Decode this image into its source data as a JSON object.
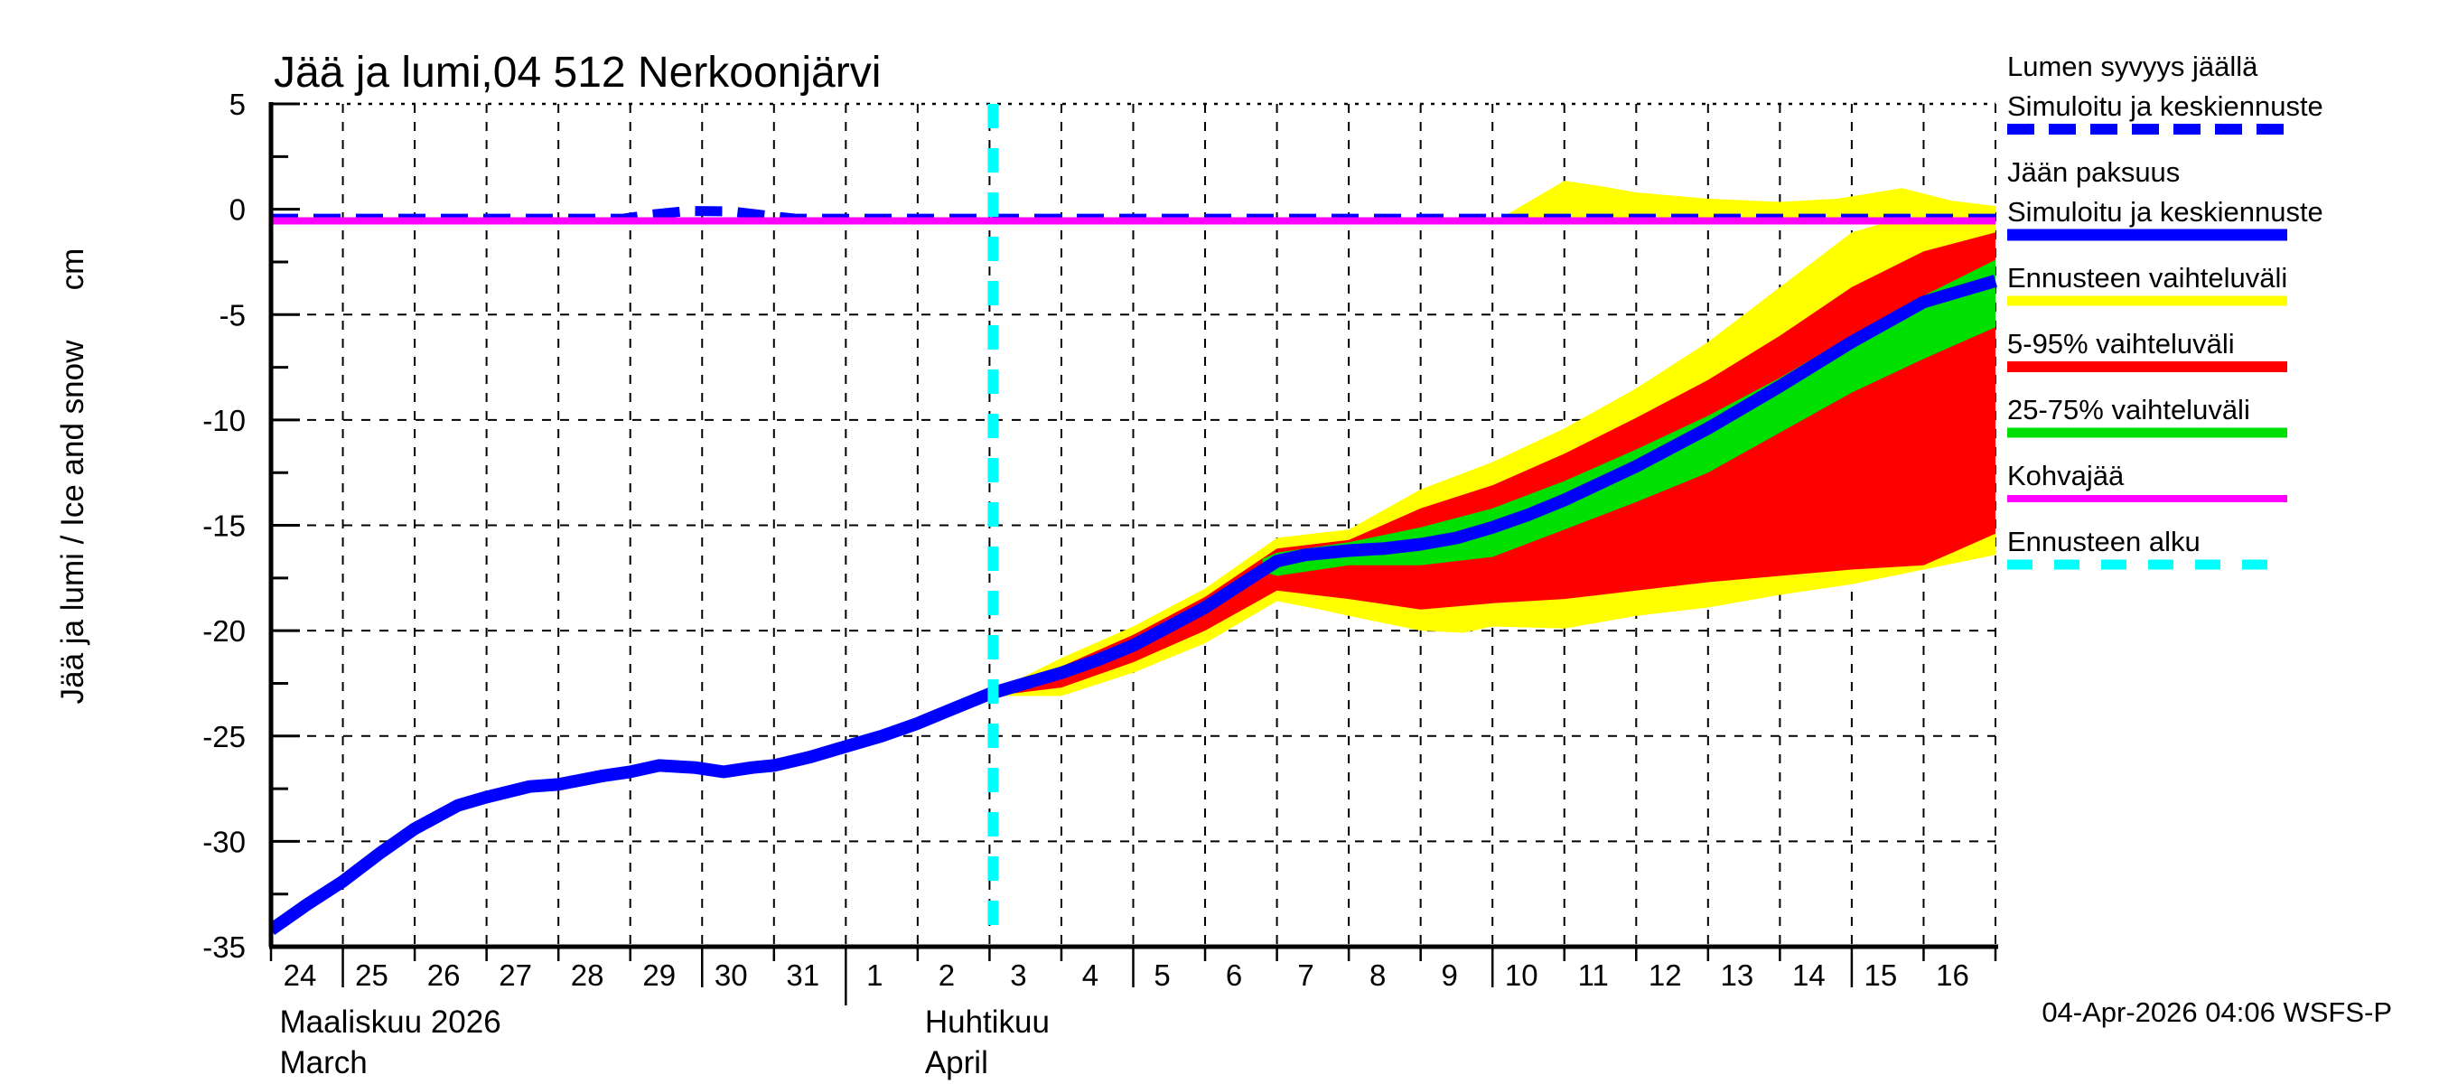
{
  "header": {
    "title": "Jää ja lumi,04 512 Nerkoonjärvi"
  },
  "footer": {
    "datestamp": "04-Apr-2026 04:06 WSFS-P"
  },
  "y_axis": {
    "label": "Jää ja lumi / Ice and snow",
    "unit": "cm",
    "tick_labels": [
      "5",
      "0",
      "-5",
      "-10",
      "-15",
      "-20",
      "-25",
      "-30",
      "-35"
    ],
    "tick_values": [
      5,
      0,
      -5,
      -10,
      -15,
      -20,
      -25,
      -30,
      -35
    ]
  },
  "x_axis": {
    "day_labels": [
      "24",
      "25",
      "26",
      "27",
      "28",
      "29",
      "30",
      "31",
      "1",
      "2",
      "3",
      "4",
      "5",
      "6",
      "7",
      "8",
      "9",
      "10",
      "11",
      "12",
      "13",
      "14",
      "15",
      "16"
    ],
    "long_tick_days": [
      1,
      6,
      8,
      12,
      17,
      22
    ],
    "month_tick_day": 8,
    "months": [
      {
        "fi": "Maaliskuu 2026",
        "en": "March",
        "day": 0.12
      },
      {
        "fi": "Huhtikuu",
        "en": "April",
        "day": 9.1
      }
    ]
  },
  "legend": {
    "items": [
      {
        "name": "snow-depth-on-ice",
        "lines": [
          "Lumen syvyys jäällä",
          "Simuloitu ja keskiennuste"
        ],
        "color": "#0000FF",
        "dash": "30 16",
        "width": 12
      },
      {
        "name": "ice-thickness",
        "lines": [
          "Jään paksuus",
          "Simuloitu ja keskiennuste"
        ],
        "color": "#0000FF",
        "dash": null,
        "width": 13
      },
      {
        "name": "forecast-range",
        "lines": [
          "Ennusteen vaihteluväli"
        ],
        "color": "#FFFF00",
        "dash": null,
        "width": 11
      },
      {
        "name": "range-5-95",
        "lines": [
          "5-95% vaihteluväli"
        ],
        "color": "#FF0000",
        "dash": null,
        "width": 12
      },
      {
        "name": "range-25-75",
        "lines": [
          "25-75% vaihteluväli"
        ],
        "color": "#00E000",
        "dash": null,
        "width": 11
      },
      {
        "name": "kohvajaa",
        "lines": [
          "Kohvajää"
        ],
        "color": "#FF00FF",
        "dash": null,
        "width": 8
      },
      {
        "name": "forecast-start",
        "lines": [
          "Ennusteen alku"
        ],
        "color": "#00FFFF",
        "dash": "28 24",
        "width": 11
      }
    ]
  },
  "chart_data": {
    "type": "area",
    "title": "Jää ja lumi,04 512 Nerkoonjärvi",
    "xlabel": "",
    "ylabel": "Jää ja lumi / Ice and snow (cm)",
    "ylim": [
      -35,
      5
    ],
    "x_span_days": 24,
    "x_start_label": "24 March",
    "x_end_label": "17 April",
    "grid": true,
    "legend_position": "right-outside",
    "forecast_start_day": 10.05,
    "colors": {
      "median": "#0000FF",
      "snow_median": "#0000FF",
      "band_total": "#FFFF00",
      "band_5_95": "#FF0000",
      "band_25_75": "#00E000",
      "kohvajaa": "#FF00FF",
      "forecast_line": "#00FFFF"
    },
    "series": {
      "ice_median": [
        [
          0,
          -34.2
        ],
        [
          0.5,
          -33.0
        ],
        [
          1,
          -31.9
        ],
        [
          1.5,
          -30.6
        ],
        [
          2,
          -29.4
        ],
        [
          2.6,
          -28.3
        ],
        [
          3,
          -27.9
        ],
        [
          3.6,
          -27.4
        ],
        [
          4,
          -27.3
        ],
        [
          4.6,
          -26.9
        ],
        [
          5,
          -26.7
        ],
        [
          5.4,
          -26.4
        ],
        [
          5.9,
          -26.5
        ],
        [
          6.3,
          -26.7
        ],
        [
          6.7,
          -26.5
        ],
        [
          7,
          -26.4
        ],
        [
          7.5,
          -26.0
        ],
        [
          8,
          -25.5
        ],
        [
          8.5,
          -25.0
        ],
        [
          9,
          -24.4
        ],
        [
          9.5,
          -23.7
        ],
        [
          10,
          -23.0
        ],
        [
          10.5,
          -22.5
        ],
        [
          11,
          -22.0
        ],
        [
          11.5,
          -21.4
        ],
        [
          12,
          -20.7
        ],
        [
          12.5,
          -19.8
        ],
        [
          13,
          -18.9
        ],
        [
          13.5,
          -17.8
        ],
        [
          14,
          -16.7
        ],
        [
          14.4,
          -16.4
        ],
        [
          15,
          -16.2
        ],
        [
          15.5,
          -16.1
        ],
        [
          16,
          -15.9
        ],
        [
          16.5,
          -15.6
        ],
        [
          17,
          -15.1
        ],
        [
          17.5,
          -14.5
        ],
        [
          18,
          -13.8
        ],
        [
          19,
          -12.2
        ],
        [
          20,
          -10.4
        ],
        [
          21,
          -8.4
        ],
        [
          22,
          -6.3
        ],
        [
          23,
          -4.4
        ],
        [
          24,
          -3.4
        ]
      ],
      "snow_median": [
        [
          0,
          -0.45
        ],
        [
          4.9,
          -0.45
        ],
        [
          5.3,
          -0.25
        ],
        [
          5.8,
          -0.08
        ],
        [
          6.4,
          -0.1
        ],
        [
          6.9,
          -0.3
        ],
        [
          7.3,
          -0.45
        ],
        [
          24,
          -0.45
        ]
      ],
      "kohvajaa": [
        [
          0,
          -0.55
        ],
        [
          24,
          -0.55
        ]
      ],
      "band_total": {
        "top": [
          [
            10.05,
            -22.9
          ],
          [
            11,
            -21.3
          ],
          [
            12,
            -19.8
          ],
          [
            13,
            -18.0
          ],
          [
            14,
            -15.6
          ],
          [
            14.5,
            -15.4
          ],
          [
            15,
            -15.2
          ],
          [
            16,
            -13.3
          ],
          [
            17,
            -12.0
          ],
          [
            18,
            -10.4
          ],
          [
            19,
            -8.5
          ],
          [
            20,
            -6.3
          ],
          [
            21,
            -3.7
          ],
          [
            22,
            -1.1
          ],
          [
            22.6,
            -0.5
          ],
          [
            23,
            -0.4
          ],
          [
            24,
            -0.4
          ]
        ],
        "bottom": [
          [
            10.05,
            -23.1
          ],
          [
            11,
            -23.1
          ],
          [
            12,
            -22.0
          ],
          [
            13,
            -20.6
          ],
          [
            14,
            -18.6
          ],
          [
            14.6,
            -19.0
          ],
          [
            15,
            -19.3
          ],
          [
            16,
            -20.0
          ],
          [
            16.6,
            -20.1
          ],
          [
            17,
            -19.8
          ],
          [
            18,
            -19.9
          ],
          [
            19,
            -19.3
          ],
          [
            20,
            -18.9
          ],
          [
            21,
            -18.3
          ],
          [
            22,
            -17.8
          ],
          [
            23,
            -17.1
          ],
          [
            24,
            -16.4
          ]
        ]
      },
      "band_5_95": {
        "top": [
          [
            10.05,
            -22.9
          ],
          [
            11,
            -21.7
          ],
          [
            12,
            -20.2
          ],
          [
            13,
            -18.4
          ],
          [
            14,
            -16.1
          ],
          [
            15,
            -15.7
          ],
          [
            16,
            -14.2
          ],
          [
            17,
            -13.1
          ],
          [
            18,
            -11.6
          ],
          [
            19,
            -9.9
          ],
          [
            20,
            -8.1
          ],
          [
            21,
            -6.0
          ],
          [
            22,
            -3.7
          ],
          [
            23,
            -2.0
          ],
          [
            24,
            -1.1
          ]
        ],
        "bottom": [
          [
            10.05,
            -23.1
          ],
          [
            11,
            -22.7
          ],
          [
            12,
            -21.5
          ],
          [
            13,
            -20.0
          ],
          [
            14,
            -18.1
          ],
          [
            15,
            -18.5
          ],
          [
            16,
            -19.0
          ],
          [
            17,
            -18.7
          ],
          [
            18,
            -18.5
          ],
          [
            19,
            -18.1
          ],
          [
            20,
            -17.7
          ],
          [
            21,
            -17.4
          ],
          [
            22,
            -17.1
          ],
          [
            23,
            -16.9
          ],
          [
            24,
            -15.4
          ]
        ]
      },
      "band_25_75": {
        "top": [
          [
            13.8,
            -16.6
          ],
          [
            14,
            -16.3
          ],
          [
            15,
            -15.8
          ],
          [
            16,
            -15.1
          ],
          [
            17,
            -14.2
          ],
          [
            18,
            -12.9
          ],
          [
            19,
            -11.4
          ],
          [
            20,
            -9.8
          ],
          [
            21,
            -8.0
          ],
          [
            22,
            -6.0
          ],
          [
            23,
            -4.1
          ],
          [
            24,
            -2.4
          ]
        ],
        "bottom": [
          [
            13.8,
            -17.2
          ],
          [
            14,
            -17.4
          ],
          [
            15,
            -16.9
          ],
          [
            16,
            -16.9
          ],
          [
            17,
            -16.5
          ],
          [
            18,
            -15.2
          ],
          [
            19,
            -13.9
          ],
          [
            20,
            -12.5
          ],
          [
            21,
            -10.6
          ],
          [
            22,
            -8.7
          ],
          [
            23,
            -7.1
          ],
          [
            24,
            -5.6
          ]
        ]
      },
      "snow_band": {
        "top": [
          [
            17.1,
            -0.45
          ],
          [
            18,
            1.35
          ],
          [
            18.5,
            1.1
          ],
          [
            19,
            0.8
          ],
          [
            20,
            0.5
          ],
          [
            21,
            0.35
          ],
          [
            21.8,
            0.5
          ],
          [
            22.7,
            1.0
          ],
          [
            23.4,
            0.4
          ],
          [
            24,
            0.15
          ]
        ],
        "bottom": [
          [
            17.1,
            -0.5
          ],
          [
            24,
            -0.5
          ]
        ]
      }
    }
  }
}
